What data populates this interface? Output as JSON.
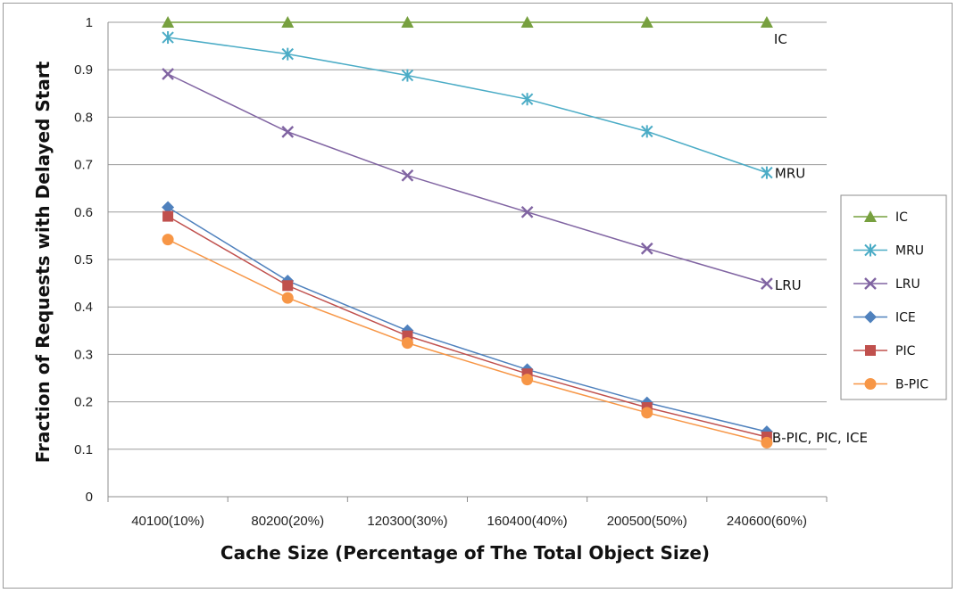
{
  "chart_data": {
    "type": "line",
    "title": "",
    "xlabel": "Cache Size (Percentage of The Total Object Size)",
    "ylabel": "Fraction of Requests with Delayed Start",
    "categories": [
      "40100(10%)",
      "80200(20%)",
      "120300(30%)",
      "160400(40%)",
      "200500(50%)",
      "240600(60%)"
    ],
    "ylim": [
      0,
      1
    ],
    "yticks": [
      "0",
      "0.1",
      "0.2",
      "0.3",
      "0.4",
      "0.5",
      "0.6",
      "0.7",
      "0.8",
      "0.9",
      "1"
    ],
    "grid": true,
    "legend_position": "right",
    "series": [
      {
        "name": "IC",
        "values": [
          1.0,
          1.0,
          1.0,
          1.0,
          1.0,
          1.0
        ],
        "color": "#77A03F",
        "marker": "triangle"
      },
      {
        "name": "MRU",
        "values": [
          0.968,
          0.933,
          0.888,
          0.838,
          0.77,
          0.683
        ],
        "color": "#4BACC6",
        "marker": "asterisk"
      },
      {
        "name": "LRU",
        "values": [
          0.891,
          0.769,
          0.677,
          0.6,
          0.523,
          0.449
        ],
        "color": "#8064A2",
        "marker": "x"
      },
      {
        "name": "ICE",
        "values": [
          0.61,
          0.455,
          0.35,
          0.268,
          0.198,
          0.137
        ],
        "color": "#4F81BD",
        "marker": "diamond"
      },
      {
        "name": "PIC",
        "values": [
          0.591,
          0.445,
          0.339,
          0.259,
          0.188,
          0.126
        ],
        "color": "#C0504D",
        "marker": "square"
      },
      {
        "name": "B-PIC",
        "values": [
          0.542,
          0.419,
          0.324,
          0.247,
          0.177,
          0.114
        ],
        "color": "#F79646",
        "marker": "circle"
      }
    ],
    "annotations": [
      {
        "text": "IC",
        "series": "IC"
      },
      {
        "text": "MRU",
        "series": "MRU"
      },
      {
        "text": "LRU",
        "series": "LRU"
      },
      {
        "text": "B-PIC, PIC, ICE",
        "series": "ICE"
      }
    ]
  }
}
